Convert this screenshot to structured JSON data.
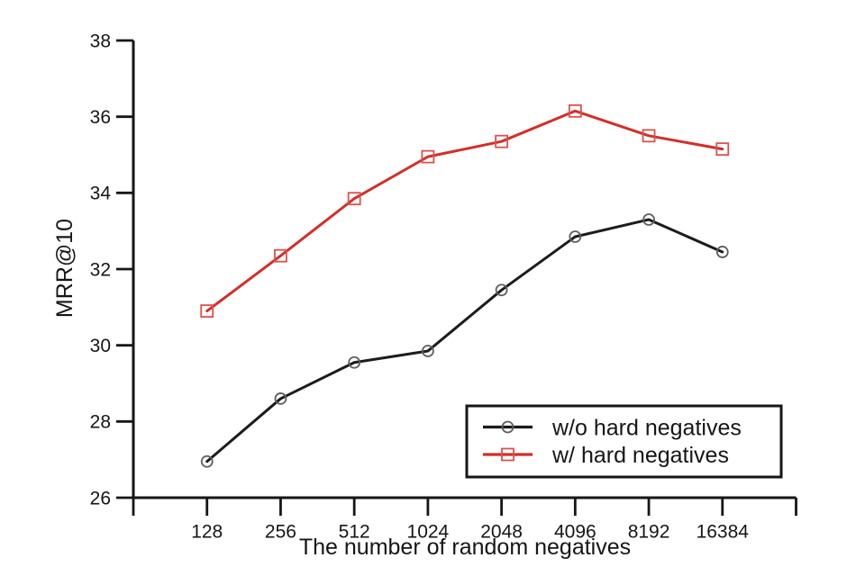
{
  "chart_data": {
    "type": "line",
    "title": "",
    "xlabel": "The number of random negatives",
    "ylabel": "MRR@10",
    "categories": [
      "128",
      "256",
      "512",
      "1024",
      "2048",
      "4096",
      "8192",
      "16384"
    ],
    "y_ticks": [
      26,
      28,
      30,
      32,
      34,
      36,
      38
    ],
    "ylim": [
      26,
      38
    ],
    "grid": false,
    "legend_position": "inside-bottom-right",
    "series": [
      {
        "name": "w/o hard negatives",
        "color": "#1c1c1c",
        "marker": "circle",
        "marker_color": "#5f5f5f",
        "values": [
          26.95,
          28.6,
          29.55,
          29.85,
          31.45,
          32.85,
          33.3,
          32.45
        ]
      },
      {
        "name": "w/ hard negatives",
        "color": "#d22f28",
        "marker": "square",
        "marker_color": "#dc514c",
        "values": [
          30.9,
          32.35,
          33.85,
          34.95,
          35.35,
          36.15,
          35.5,
          35.15
        ]
      }
    ]
  },
  "colors": {
    "background": "#ffffff",
    "axis": "#161616",
    "text": "#161616"
  }
}
